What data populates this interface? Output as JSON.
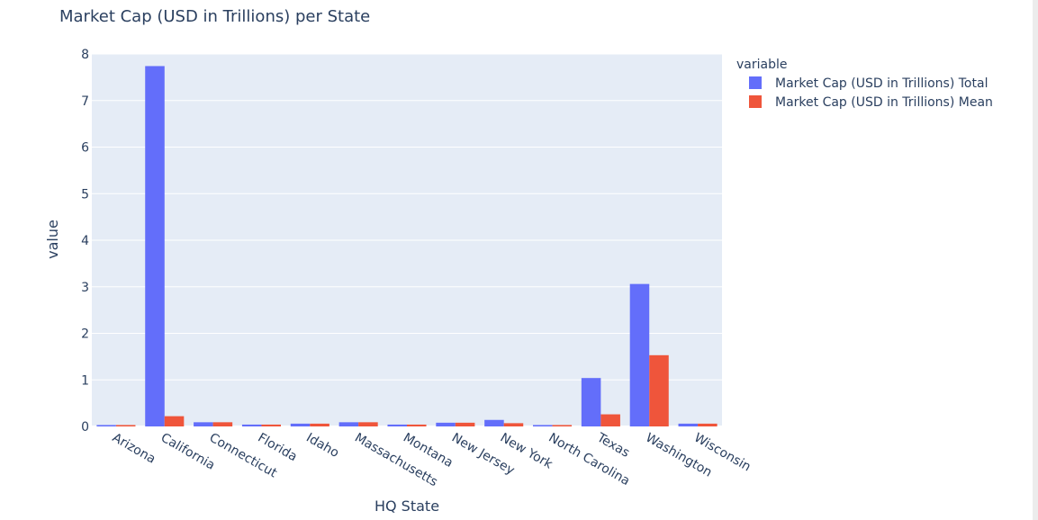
{
  "chart_data": {
    "type": "bar",
    "title": "Market Cap (USD in Trillions) per State",
    "xlabel": "HQ State",
    "ylabel": "value",
    "ylim": [
      0,
      8
    ],
    "yticks": [
      0,
      1,
      2,
      3,
      4,
      5,
      6,
      7,
      8
    ],
    "categories": [
      "Arizona",
      "California",
      "Connecticut",
      "Florida",
      "Idaho",
      "Massachusetts",
      "Montana",
      "New Jersey",
      "New York",
      "North Carolina",
      "Texas",
      "Washington",
      "Wisconsin"
    ],
    "legend_title": "variable",
    "legend_position": "top-right",
    "grid": true,
    "series": [
      {
        "name": "Market Cap (USD in Trillions) Total",
        "color": "#636efa",
        "values": [
          0.03,
          7.74,
          0.09,
          0.04,
          0.06,
          0.09,
          0.04,
          0.08,
          0.14,
          0.03,
          1.04,
          3.06,
          0.06
        ]
      },
      {
        "name": "Market Cap (USD in Trillions) Mean",
        "color": "#ef553b",
        "values": [
          0.03,
          0.22,
          0.09,
          0.04,
          0.06,
          0.09,
          0.04,
          0.08,
          0.07,
          0.03,
          0.26,
          1.53,
          0.06
        ]
      }
    ]
  },
  "colors": {
    "plot_background": "#e5ecf6",
    "gridline": "#ffffff",
    "text": "#2a3f5f"
  }
}
